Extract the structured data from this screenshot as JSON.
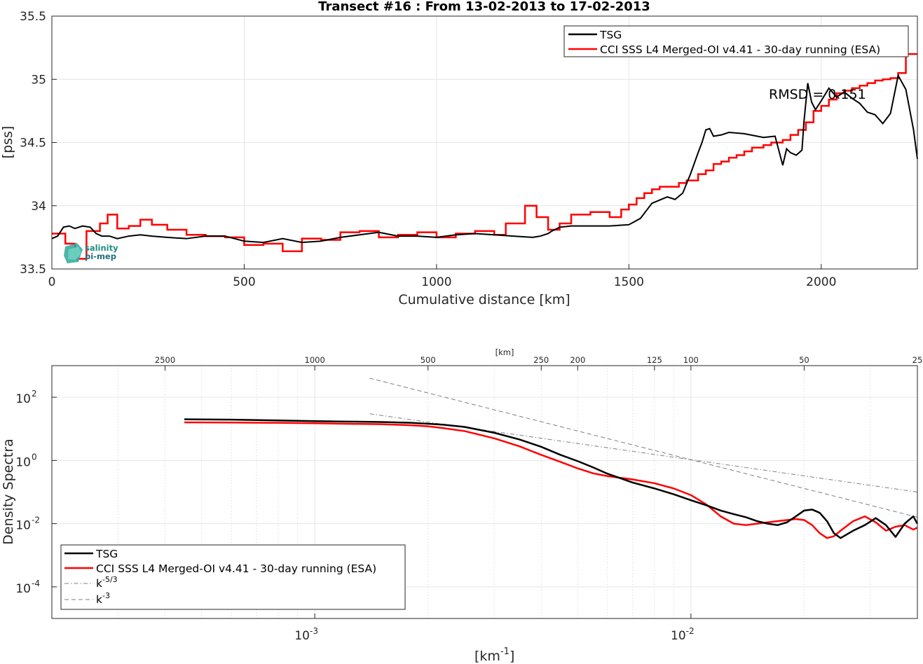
{
  "top_chart": {
    "title": "Transect #16 : From 13-02-2013 to 17-02-2013",
    "xlabel": "Cumulative distance [km]",
    "ylabel": "[pss]",
    "annotation": "RMSD = 0.151",
    "logo_text": [
      "salinity",
      "pi-mep"
    ],
    "x_ticks": [
      "0",
      "500",
      "1000",
      "1500",
      "2000"
    ],
    "y_ticks": [
      "33.5",
      "34",
      "34.5",
      "35",
      "35.5"
    ]
  },
  "bottom_chart": {
    "xlabel_main": "[km",
    "xlabel_sup": "-1",
    "xlabel_end": "]",
    "ylabel": "Density Spectra",
    "top_axis_label": "[km]",
    "top_ticks": [
      "2500",
      "1000",
      "500",
      "250",
      "200",
      "125",
      "100",
      "50",
      "25"
    ],
    "x_ticks": [
      {
        "base": "10",
        "exp": "-3"
      },
      {
        "base": "10",
        "exp": "-2"
      }
    ],
    "y_ticks": [
      {
        "base": "10",
        "exp": "2"
      },
      {
        "base": "10",
        "exp": "0"
      },
      {
        "base": "10",
        "exp": "-2"
      },
      {
        "base": "10",
        "exp": "-4"
      }
    ],
    "legend": {
      "tsg": "TSG",
      "cci": "CCI SSS L4 Merged-OI v4.41 - 30-day running (ESA)",
      "k53_base": "k",
      "k53_exp": "-5/3",
      "k3_base": "k",
      "k3_exp": "-3"
    }
  },
  "legend_top": {
    "tsg": "TSG",
    "cci": "CCI SSS L4 Merged-OI v4.41 - 30-day running (ESA)"
  },
  "colors": {
    "tsg": "#000000",
    "cci": "#ff0000",
    "ref": "#7f7f7f",
    "grid": "#e6e6e6"
  },
  "chart_data": [
    {
      "type": "line",
      "title": "Transect #16 : From 13-02-2013 to 17-02-2013",
      "xlabel": "Cumulative distance [km]",
      "ylabel": "[pss]",
      "xlim": [
        0,
        2250
      ],
      "ylim": [
        33.5,
        35.5
      ],
      "series": [
        {
          "name": "TSG",
          "x": [
            0,
            15,
            30,
            45,
            60,
            80,
            100,
            115,
            130,
            150,
            170,
            200,
            230,
            260,
            300,
            350,
            400,
            450,
            500,
            550,
            600,
            650,
            700,
            750,
            800,
            850,
            900,
            950,
            1000,
            1050,
            1100,
            1150,
            1200,
            1250,
            1270,
            1290,
            1300,
            1320,
            1350,
            1400,
            1450,
            1500,
            1530,
            1560,
            1600,
            1620,
            1640,
            1660,
            1680,
            1690,
            1700,
            1710,
            1720,
            1740,
            1760,
            1800,
            1850,
            1880,
            1900,
            1910,
            1920,
            1935,
            1950,
            1955,
            1965,
            1975,
            1985,
            2000,
            2020,
            2040,
            2060,
            2080,
            2100,
            2120,
            2140,
            2160,
            2180,
            2200,
            2220,
            2240,
            2250
          ],
          "y": [
            33.74,
            33.76,
            33.83,
            33.84,
            33.82,
            33.84,
            33.83,
            33.78,
            33.76,
            33.76,
            33.74,
            33.76,
            33.77,
            33.76,
            33.75,
            33.74,
            33.76,
            33.76,
            33.72,
            33.71,
            33.74,
            33.71,
            33.72,
            33.75,
            33.77,
            33.79,
            33.76,
            33.76,
            33.75,
            33.77,
            33.78,
            33.77,
            33.76,
            33.75,
            33.76,
            33.78,
            33.8,
            33.83,
            33.84,
            33.84,
            33.84,
            33.85,
            33.9,
            34.02,
            34.07,
            34.05,
            34.1,
            34.25,
            34.42,
            34.5,
            34.6,
            34.61,
            34.55,
            34.56,
            34.58,
            34.57,
            34.54,
            34.55,
            34.32,
            34.45,
            34.42,
            34.4,
            34.44,
            34.66,
            34.97,
            34.82,
            34.76,
            34.83,
            34.93,
            34.86,
            34.9,
            34.85,
            34.81,
            34.74,
            34.72,
            34.65,
            34.73,
            35.03,
            34.92,
            34.6,
            34.37
          ]
        },
        {
          "name": "CCI SSS L4 Merged-OI v4.41 - 30-day running (ESA)",
          "x": [
            0,
            35,
            60,
            90,
            125,
            145,
            170,
            200,
            230,
            260,
            300,
            350,
            400,
            450,
            500,
            550,
            600,
            650,
            700,
            750,
            800,
            850,
            900,
            950,
            1000,
            1050,
            1100,
            1150,
            1180,
            1230,
            1260,
            1290,
            1320,
            1350,
            1400,
            1450,
            1480,
            1500,
            1520,
            1540,
            1560,
            1580,
            1600,
            1630,
            1650,
            1680,
            1700,
            1720,
            1740,
            1760,
            1780,
            1800,
            1820,
            1850,
            1870,
            1900,
            1920,
            1940,
            1960,
            1980,
            2000,
            2020,
            2040,
            2060,
            2080,
            2100,
            2120,
            2140,
            2160,
            2180,
            2200,
            2220,
            2250
          ],
          "y": [
            33.78,
            33.7,
            33.58,
            33.8,
            33.86,
            33.93,
            33.82,
            33.84,
            33.89,
            33.85,
            33.81,
            33.77,
            33.76,
            33.75,
            33.69,
            33.7,
            33.64,
            33.74,
            33.73,
            33.79,
            33.8,
            33.75,
            33.77,
            33.79,
            33.75,
            33.78,
            33.8,
            33.77,
            33.86,
            34.0,
            33.91,
            33.81,
            33.86,
            33.93,
            33.95,
            33.91,
            33.97,
            34.01,
            34.06,
            34.1,
            34.13,
            34.15,
            34.15,
            34.18,
            34.2,
            34.25,
            34.28,
            34.33,
            34.35,
            34.38,
            34.4,
            34.43,
            34.46,
            34.48,
            34.5,
            34.52,
            34.56,
            34.6,
            34.66,
            34.75,
            34.79,
            34.84,
            34.89,
            34.91,
            34.93,
            34.95,
            34.97,
            34.99,
            35.0,
            35.01,
            35.05,
            35.2,
            35.2
          ]
        }
      ]
    },
    {
      "type": "line",
      "xlabel": "[km-1]",
      "ylabel": "Density Spectra",
      "xscale": "log",
      "yscale": "log",
      "xlim": [
        0.0002,
        0.04
      ],
      "ylim": [
        1e-05,
        1000
      ],
      "grid": true,
      "legend_position": "bottom-left",
      "series": [
        {
          "name": "TSG",
          "x": [
            0.00045,
            0.0006,
            0.0008,
            0.001,
            0.0012,
            0.0015,
            0.0018,
            0.002,
            0.0022,
            0.0025,
            0.003,
            0.0035,
            0.004,
            0.0045,
            0.005,
            0.0055,
            0.006,
            0.007,
            0.008,
            0.009,
            0.01,
            0.011,
            0.012,
            0.013,
            0.014,
            0.015,
            0.016,
            0.017,
            0.018,
            0.019,
            0.02,
            0.021,
            0.022,
            0.023,
            0.024,
            0.025,
            0.027,
            0.029,
            0.031,
            0.033,
            0.035,
            0.037,
            0.039,
            0.04
          ],
          "y": [
            20,
            19.5,
            18.5,
            17.5,
            17,
            16.5,
            15.5,
            14.5,
            13.5,
            11.5,
            7.5,
            4.6,
            2.7,
            1.5,
            0.95,
            0.6,
            0.38,
            0.2,
            0.13,
            0.085,
            0.055,
            0.038,
            0.026,
            0.02,
            0.016,
            0.012,
            0.01,
            0.009,
            0.011,
            0.017,
            0.026,
            0.028,
            0.022,
            0.012,
            0.005,
            0.0035,
            0.006,
            0.009,
            0.015,
            0.009,
            0.0038,
            0.01,
            0.017,
            0.01
          ]
        },
        {
          "name": "CCI SSS L4 Merged-OI v4.41 - 30-day running (ESA)",
          "x": [
            0.00045,
            0.0006,
            0.0008,
            0.001,
            0.0012,
            0.0015,
            0.0018,
            0.002,
            0.0022,
            0.0025,
            0.003,
            0.0035,
            0.004,
            0.0045,
            0.005,
            0.0055,
            0.006,
            0.007,
            0.008,
            0.009,
            0.01,
            0.011,
            0.012,
            0.013,
            0.014,
            0.015,
            0.016,
            0.017,
            0.018,
            0.019,
            0.02,
            0.021,
            0.022,
            0.023,
            0.024,
            0.025,
            0.027,
            0.029,
            0.031,
            0.033,
            0.035,
            0.037,
            0.039,
            0.04
          ],
          "y": [
            16,
            15.8,
            15.5,
            15,
            14.5,
            14,
            13,
            12,
            10.5,
            8.5,
            5,
            2.8,
            1.5,
            0.9,
            0.56,
            0.39,
            0.32,
            0.25,
            0.19,
            0.13,
            0.08,
            0.04,
            0.017,
            0.01,
            0.009,
            0.01,
            0.011,
            0.012,
            0.013,
            0.014,
            0.013,
            0.009,
            0.005,
            0.0035,
            0.004,
            0.006,
            0.012,
            0.017,
            0.011,
            0.006,
            0.008,
            0.009,
            0.0065,
            0.0075
          ]
        },
        {
          "name": "k-5/3",
          "x": [
            0.0014,
            0.04
          ],
          "y": [
            30,
            0.1
          ]
        },
        {
          "name": "k-3",
          "x": [
            0.0014,
            0.04
          ],
          "y": [
            400,
            0.016
          ]
        }
      ]
    }
  ]
}
